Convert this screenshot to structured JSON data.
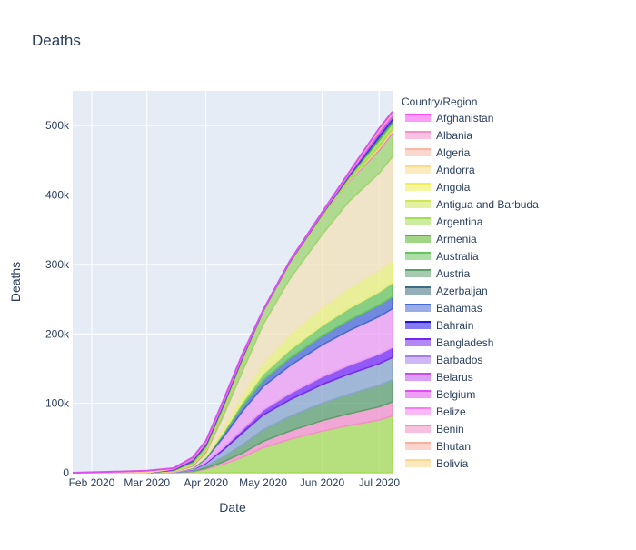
{
  "chart_data": {
    "type": "area",
    "title": "Deaths",
    "xlabel": "Date",
    "ylabel": "Deaths",
    "x_ticks": [
      "Feb 2020",
      "Mar 2020",
      "Apr 2020",
      "May 2020",
      "Jun 2020",
      "Jul 2020"
    ],
    "y_ticks": [
      "0",
      "100k",
      "200k",
      "300k",
      "400k",
      "500k"
    ],
    "y_tick_values": [
      0,
      100000,
      200000,
      300000,
      400000,
      500000
    ],
    "xlim": [
      "2020-01-22",
      "2020-07-08"
    ],
    "ylim": [
      0,
      550000
    ],
    "grid": true,
    "legend_title": "Country/Region",
    "legend_position": "right",
    "x": [
      "2020-01-22",
      "2020-02-15",
      "2020-03-01",
      "2020-03-15",
      "2020-03-25",
      "2020-04-01",
      "2020-04-10",
      "2020-04-20",
      "2020-05-01",
      "2020-05-15",
      "2020-06-01",
      "2020-06-15",
      "2020-07-01",
      "2020-07-08"
    ],
    "total": [
      0,
      1700,
      3000,
      6500,
      22000,
      46000,
      103000,
      170000,
      234000,
      305000,
      375000,
      432000,
      496000,
      520000
    ],
    "series": [
      {
        "name": "Afghanistan",
        "color": "#f64ff5",
        "values": [
          0,
          0,
          0,
          10,
          40,
          100,
          200,
          400,
          600,
          900,
          1200,
          1500,
          1700,
          1800
        ]
      },
      {
        "name": "Albania",
        "color": "#f490c9",
        "values": [
          0,
          0,
          0,
          10,
          30,
          80,
          150,
          300,
          450,
          650,
          850,
          1050,
          1200,
          1300
        ]
      },
      {
        "name": "Algeria",
        "color": "#fcb7a4",
        "values": [
          0,
          0,
          0,
          10,
          30,
          80,
          150,
          300,
          450,
          650,
          850,
          1050,
          1200,
          1300
        ]
      },
      {
        "name": "Andorra",
        "color": "#fddb8a",
        "values": [
          0,
          0,
          0,
          10,
          30,
          80,
          150,
          300,
          450,
          650,
          850,
          1050,
          1200,
          1300
        ]
      },
      {
        "name": "Angola",
        "color": "#eeef54",
        "values": [
          0,
          0,
          0,
          10,
          30,
          80,
          150,
          300,
          450,
          650,
          850,
          1050,
          1200,
          1300
        ]
      },
      {
        "name": "Antigua and Barbuda",
        "color": "#cde654",
        "values": [
          0,
          0,
          0,
          10,
          40,
          100,
          200,
          400,
          600,
          800,
          1000,
          1200,
          1400,
          1500
        ]
      },
      {
        "name": "Argentina",
        "color": "#a6db55",
        "values": [
          0,
          0,
          0,
          20,
          200,
          700,
          1800,
          3200,
          4800,
          6500,
          8500,
          10200,
          12000,
          12800
        ]
      },
      {
        "name": "Armenia",
        "color": "#56b525",
        "values": [
          0,
          0,
          0,
          10,
          40,
          100,
          200,
          400,
          600,
          900,
          1200,
          1500,
          1700,
          1800
        ]
      },
      {
        "name": "Australia",
        "color": "#68c45c",
        "values": [
          0,
          0,
          0,
          10,
          40,
          100,
          200,
          400,
          600,
          900,
          1200,
          1500,
          1700,
          1800
        ]
      },
      {
        "name": "Austria",
        "color": "#5d9e6e",
        "values": [
          0,
          0,
          0,
          10,
          40,
          100,
          200,
          400,
          600,
          900,
          1200,
          1500,
          1700,
          1800
        ]
      },
      {
        "name": "Azerbaijan",
        "color": "#3d6c80",
        "values": [
          0,
          0,
          0,
          10,
          40,
          100,
          200,
          400,
          600,
          900,
          1200,
          1500,
          1700,
          1800
        ]
      },
      {
        "name": "Bahamas",
        "color": "#4568d4",
        "values": [
          0,
          0,
          0,
          10,
          40,
          100,
          200,
          400,
          600,
          900,
          1200,
          1500,
          1700,
          1800
        ]
      },
      {
        "name": "Bahrain",
        "color": "#2010e8",
        "values": [
          0,
          0,
          0,
          10,
          40,
          100,
          200,
          400,
          600,
          900,
          1200,
          1500,
          1700,
          1800
        ]
      },
      {
        "name": "Bangladesh",
        "color": "#7428f4",
        "values": [
          0,
          0,
          0,
          10,
          40,
          100,
          200,
          400,
          600,
          900,
          1200,
          1500,
          1700,
          1800
        ]
      },
      {
        "name": "Barbados",
        "color": "#a67df0",
        "values": [
          0,
          0,
          0,
          10,
          40,
          100,
          200,
          400,
          600,
          900,
          1200,
          1500,
          1700,
          1800
        ]
      },
      {
        "name": "Belarus",
        "color": "#c14ef3",
        "values": [
          0,
          0,
          0,
          10,
          40,
          100,
          200,
          400,
          600,
          900,
          1200,
          1500,
          1700,
          1800
        ]
      },
      {
        "name": "Belgium",
        "color": "#e04ef1",
        "values": [
          0,
          0,
          0,
          10,
          40,
          100,
          200,
          400,
          600,
          900,
          1200,
          1500,
          1700,
          1800
        ]
      },
      {
        "name": "Belize",
        "color": "#f57ef2",
        "values": [
          0,
          0,
          0,
          10,
          40,
          100,
          200,
          400,
          600,
          900,
          1200,
          1500,
          1700,
          1800
        ]
      },
      {
        "name": "Benin",
        "color": "#f28cc4",
        "values": [
          0,
          0,
          0,
          10,
          40,
          100,
          200,
          400,
          600,
          900,
          1200,
          1500,
          1700,
          1800
        ]
      },
      {
        "name": "Bhutan",
        "color": "#fab0a0",
        "values": [
          0,
          0,
          0,
          10,
          40,
          100,
          200,
          400,
          600,
          900,
          1200,
          1500,
          1700,
          1800
        ]
      },
      {
        "name": "Bolivia",
        "color": "#fcd78c",
        "values": [
          0,
          0,
          0,
          10,
          40,
          100,
          200,
          400,
          600,
          900,
          1200,
          1500,
          1700,
          1800
        ]
      }
    ],
    "background_bands": [
      {
        "color": "#a6db55",
        "values": [
          0,
          0,
          0,
          200,
          1500,
          5000,
          12000,
          22000,
          36000,
          48000,
          60000,
          68000,
          76000,
          82000
        ]
      },
      {
        "color": "#f490c9",
        "values": [
          0,
          0,
          0,
          100,
          500,
          1500,
          3500,
          6000,
          9000,
          12000,
          15000,
          17000,
          19000,
          20000
        ]
      },
      {
        "color": "#5d9e6e",
        "values": [
          0,
          0,
          0,
          200,
          1000,
          3000,
          7000,
          12000,
          17000,
          21000,
          25000,
          28000,
          31000,
          32000
        ]
      },
      {
        "color": "#8aa6cc",
        "values": [
          0,
          0,
          0,
          200,
          1500,
          4000,
          10000,
          17000,
          21000,
          24000,
          27000,
          29000,
          31000,
          32000
        ]
      },
      {
        "color": "#7428f4",
        "values": [
          0,
          0,
          0,
          100,
          500,
          1500,
          3000,
          5000,
          7000,
          9000,
          11000,
          12500,
          14000,
          14500
        ]
      },
      {
        "color": "#ec9cf3",
        "values": [
          0,
          0,
          0,
          100,
          1500,
          5000,
          15000,
          26000,
          34000,
          40000,
          46000,
          50000,
          54000,
          56000
        ]
      },
      {
        "color": "#4568d4",
        "values": [
          0,
          0,
          0,
          100,
          500,
          1500,
          4000,
          7000,
          9000,
          11000,
          13000,
          15000,
          16500,
          17000
        ]
      },
      {
        "color": "#68c45c",
        "values": [
          0,
          0,
          0,
          100,
          500,
          1200,
          3000,
          6000,
          9000,
          12000,
          15000,
          17000,
          19000,
          20000
        ]
      },
      {
        "color": "#e9ef7a",
        "values": [
          0,
          0,
          0,
          100,
          800,
          2000,
          5000,
          10000,
          16000,
          22000,
          26000,
          29000,
          31000,
          32000
        ]
      },
      {
        "color": "#f2e2b8",
        "values": [
          0,
          0,
          0,
          100,
          1000,
          4000,
          18000,
          34000,
          55000,
          80000,
          105000,
          125000,
          140000,
          150000
        ]
      },
      {
        "color": "#9fd46f",
        "values": [
          0,
          0,
          0,
          100,
          700,
          2000,
          6000,
          12000,
          18000,
          22000,
          26000,
          29000,
          33000,
          34000
        ]
      }
    ]
  }
}
